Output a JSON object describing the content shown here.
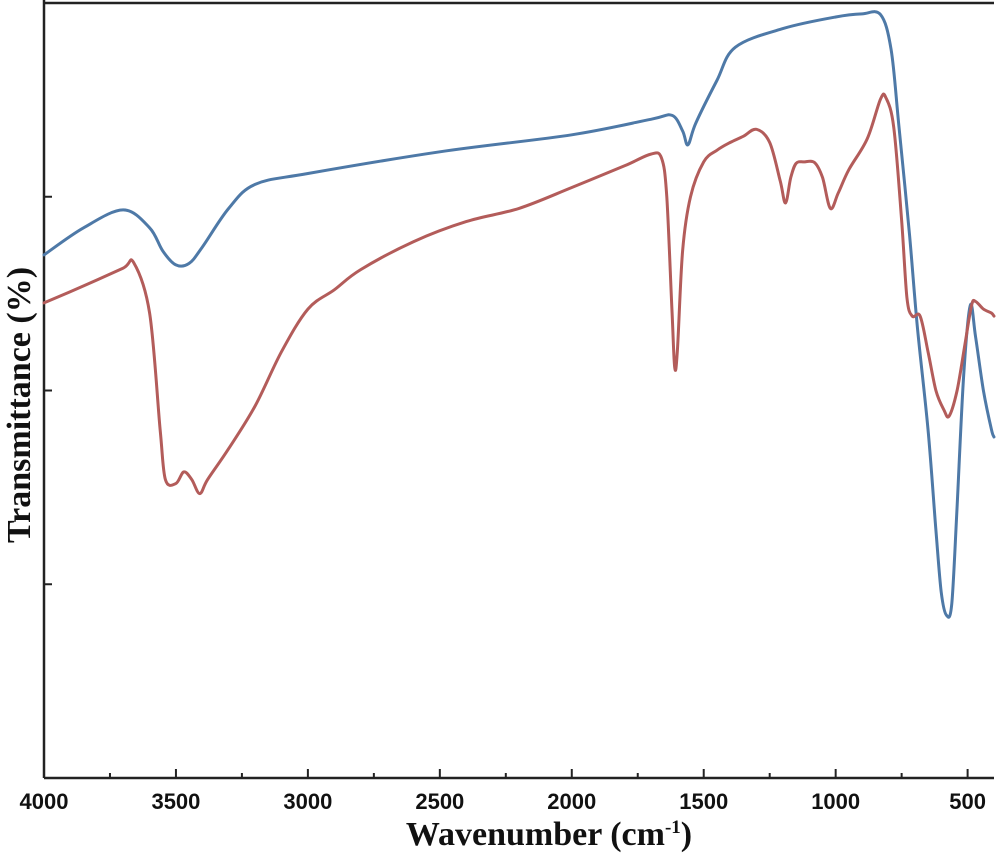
{
  "chart_data": {
    "type": "line",
    "title": "",
    "xlabel": "Wavenumber (cm",
    "xlabel_sup": "-1",
    "xlabel_end": ")",
    "ylabel": "Transmittance (%)",
    "xlim": [
      4000,
      400
    ],
    "x_reversed": true,
    "ylim": [
      0,
      100
    ],
    "y_ticks_unlabeled": true,
    "grid": false,
    "x_ticks": [
      {
        "value": 4000,
        "label": "4000"
      },
      {
        "value": 3500,
        "label": "3500"
      },
      {
        "value": 3000,
        "label": "3000"
      },
      {
        "value": 2500,
        "label": "2500"
      },
      {
        "value": 2000,
        "label": "2000"
      },
      {
        "value": 1500,
        "label": "1500"
      },
      {
        "value": 1000,
        "label": "1000"
      },
      {
        "value": 500,
        "label": "500"
      }
    ],
    "series": [
      {
        "color": "#4e79a7",
        "points": [
          [
            4000,
            67.5
          ],
          [
            3850,
            71
          ],
          [
            3700,
            73.3
          ],
          [
            3600,
            71
          ],
          [
            3550,
            68
          ],
          [
            3500,
            66.2
          ],
          [
            3450,
            66.4
          ],
          [
            3400,
            68.5
          ],
          [
            3300,
            73.5
          ],
          [
            3200,
            76.6
          ],
          [
            3000,
            78
          ],
          [
            2500,
            80.8
          ],
          [
            2000,
            83
          ],
          [
            1700,
            85
          ],
          [
            1620,
            85.5
          ],
          [
            1580,
            83.5
          ],
          [
            1560,
            81.7
          ],
          [
            1530,
            84.5
          ],
          [
            1450,
            90
          ],
          [
            1380,
            94.3
          ],
          [
            1200,
            96.7
          ],
          [
            1000,
            98.2
          ],
          [
            900,
            98.6
          ],
          [
            830,
            98.5
          ],
          [
            790,
            94
          ],
          [
            760,
            84
          ],
          [
            720,
            70
          ],
          [
            690,
            58
          ],
          [
            650,
            45
          ],
          [
            620,
            32
          ],
          [
            600,
            24
          ],
          [
            580,
            21
          ],
          [
            560,
            22.5
          ],
          [
            540,
            35
          ],
          [
            515,
            52
          ],
          [
            490,
            61
          ],
          [
            470,
            57
          ],
          [
            440,
            50
          ],
          [
            410,
            45
          ],
          [
            400,
            44
          ]
        ]
      },
      {
        "color": "#b35c5a",
        "points": [
          [
            4000,
            61.3
          ],
          [
            3850,
            63.5
          ],
          [
            3700,
            65.8
          ],
          [
            3660,
            66.5
          ],
          [
            3600,
            60
          ],
          [
            3560,
            45
          ],
          [
            3540,
            38.5
          ],
          [
            3500,
            38
          ],
          [
            3470,
            39.5
          ],
          [
            3440,
            38.5
          ],
          [
            3410,
            36.7
          ],
          [
            3380,
            38.5
          ],
          [
            3300,
            42.5
          ],
          [
            3200,
            48
          ],
          [
            3100,
            55
          ],
          [
            3000,
            60.5
          ],
          [
            2900,
            63
          ],
          [
            2800,
            65.6
          ],
          [
            2600,
            69.2
          ],
          [
            2400,
            71.8
          ],
          [
            2200,
            73.5
          ],
          [
            2000,
            76.2
          ],
          [
            1800,
            79
          ],
          [
            1700,
            80.5
          ],
          [
            1660,
            80
          ],
          [
            1640,
            75
          ],
          [
            1620,
            60
          ],
          [
            1610,
            53
          ],
          [
            1600,
            55
          ],
          [
            1580,
            68
          ],
          [
            1550,
            75
          ],
          [
            1500,
            79.5
          ],
          [
            1450,
            81
          ],
          [
            1400,
            82
          ],
          [
            1350,
            82.8
          ],
          [
            1300,
            83.7
          ],
          [
            1250,
            82
          ],
          [
            1210,
            77
          ],
          [
            1190,
            74.2
          ],
          [
            1170,
            77.5
          ],
          [
            1150,
            79.3
          ],
          [
            1120,
            79.5
          ],
          [
            1080,
            79.4
          ],
          [
            1050,
            77.5
          ],
          [
            1020,
            73.5
          ],
          [
            990,
            75.5
          ],
          [
            950,
            78.5
          ],
          [
            880,
            82.5
          ],
          [
            830,
            87.6
          ],
          [
            810,
            87.8
          ],
          [
            780,
            84
          ],
          [
            750,
            72
          ],
          [
            730,
            62
          ],
          [
            710,
            59.6
          ],
          [
            680,
            59.6
          ],
          [
            650,
            55
          ],
          [
            620,
            50
          ],
          [
            590,
            47.5
          ],
          [
            570,
            46.7
          ],
          [
            540,
            50
          ],
          [
            510,
            56
          ],
          [
            485,
            61
          ],
          [
            470,
            61.5
          ],
          [
            440,
            60.5
          ],
          [
            410,
            60
          ],
          [
            400,
            59.6
          ]
        ]
      }
    ]
  }
}
